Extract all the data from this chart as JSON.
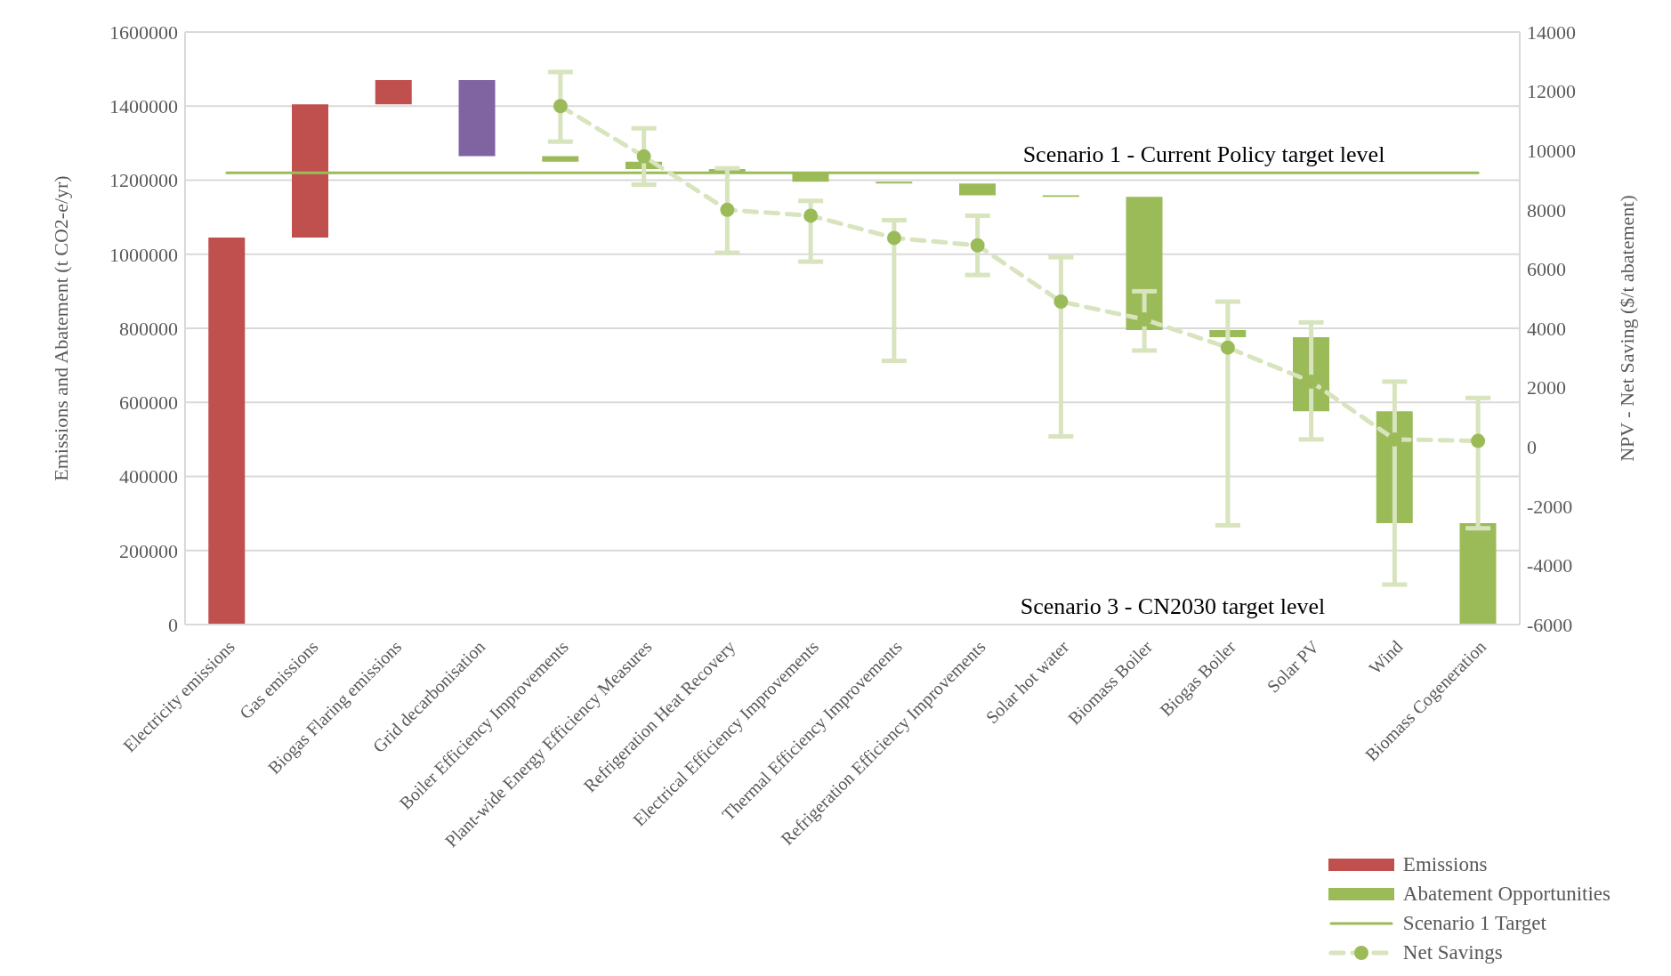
{
  "chart_data": {
    "type": "bar",
    "ylabel": "Emissions and Abatement (t CO2-e/yr)",
    "y2label": "NPV - Net Saving ($/t abatement)",
    "categories": [
      "Electricity emissions",
      "Gas emissions",
      "Biogas Flaring emissions",
      "Grid decarbonisation",
      "Boiler Efficiency Improvements",
      "Plant-wide Energy Efficiency Measures",
      "Refrigeration Heat Recovery",
      "Electrical Efficiency Improvements",
      "Thermal Efficiency Improvements",
      "Refrigeration Efficiency Improvements",
      "Solar hot water",
      "Biomass Boiler",
      "Biogas Boiler",
      "Solar PV",
      "Wind",
      "Biomass Cogeneration"
    ],
    "series": [
      {
        "name": "Emissions",
        "color": "#c0504d",
        "values": [
          1045000,
          360000,
          65000,
          205000,
          null,
          null,
          null,
          null,
          null,
          null,
          null,
          null,
          null,
          null,
          null,
          null
        ],
        "base": [
          0,
          1045000,
          1405000,
          1265000,
          null,
          null,
          null,
          null,
          null,
          null,
          null,
          null,
          null,
          null,
          null,
          null
        ],
        "colors": [
          "#c0504d",
          "#c0504d",
          "#c0504d",
          "#8064a2",
          null,
          null,
          null,
          null,
          null,
          null,
          null,
          null,
          null,
          null,
          null,
          null
        ]
      },
      {
        "name": "Abatement Opportunities",
        "color": "#9bbb59",
        "values": [
          null,
          null,
          null,
          null,
          15000,
          20000,
          12000,
          22000,
          5000,
          32000,
          4000,
          360000,
          19000,
          200000,
          302000,
          274000
        ],
        "base": [
          null,
          null,
          null,
          null,
          1250000,
          1230000,
          1218000,
          1196000,
          1191000,
          1159000,
          1155000,
          795000,
          776000,
          576000,
          274000,
          0
        ]
      },
      {
        "name": "Scenario 1 Target",
        "type": "line",
        "color": "#9bbb59",
        "marker": "none",
        "line_style": "solid",
        "values": [
          1220000,
          1220000,
          1220000,
          1220000,
          1220000,
          1220000,
          1220000,
          1220000,
          1220000,
          1220000,
          1220000,
          1220000,
          1220000,
          1220000,
          1220000,
          1220000
        ]
      },
      {
        "name": "Net Savings",
        "type": "line",
        "axis": "y2",
        "color": "#9bbb59",
        "marker": "circle",
        "line_style": "dashed",
        "values": [
          null,
          null,
          null,
          null,
          11500,
          9800,
          8000,
          7800,
          7050,
          6800,
          4900,
          4300,
          3350,
          2200,
          250,
          200
        ],
        "errors": [
          null,
          null,
          null,
          null,
          [
            10300,
            12650
          ],
          [
            8850,
            10750
          ],
          [
            6550,
            9400
          ],
          [
            6250,
            8300
          ],
          [
            2900,
            7650
          ],
          [
            5800,
            7800
          ],
          [
            350,
            6400
          ],
          [
            3250,
            5250
          ],
          [
            -2650,
            4900
          ],
          [
            250,
            4200
          ],
          [
            -4650,
            2200
          ],
          [
            -2750,
            1650
          ]
        ]
      }
    ],
    "ylim": [
      0,
      1600000
    ],
    "yticks": [
      0,
      200000,
      400000,
      600000,
      800000,
      1000000,
      1200000,
      1400000,
      1600000
    ],
    "y2lim": [
      -6000,
      14000
    ],
    "y2ticks": [
      -6000,
      -4000,
      -2000,
      0,
      2000,
      4000,
      6000,
      8000,
      10000,
      12000,
      14000
    ],
    "grid": "y",
    "legend": "bottom right",
    "annotations": [
      {
        "text": "Scenario 1 - Current Policy target level",
        "y": 1220000
      },
      "Scenario 3 - CN2030 target level"
    ]
  }
}
